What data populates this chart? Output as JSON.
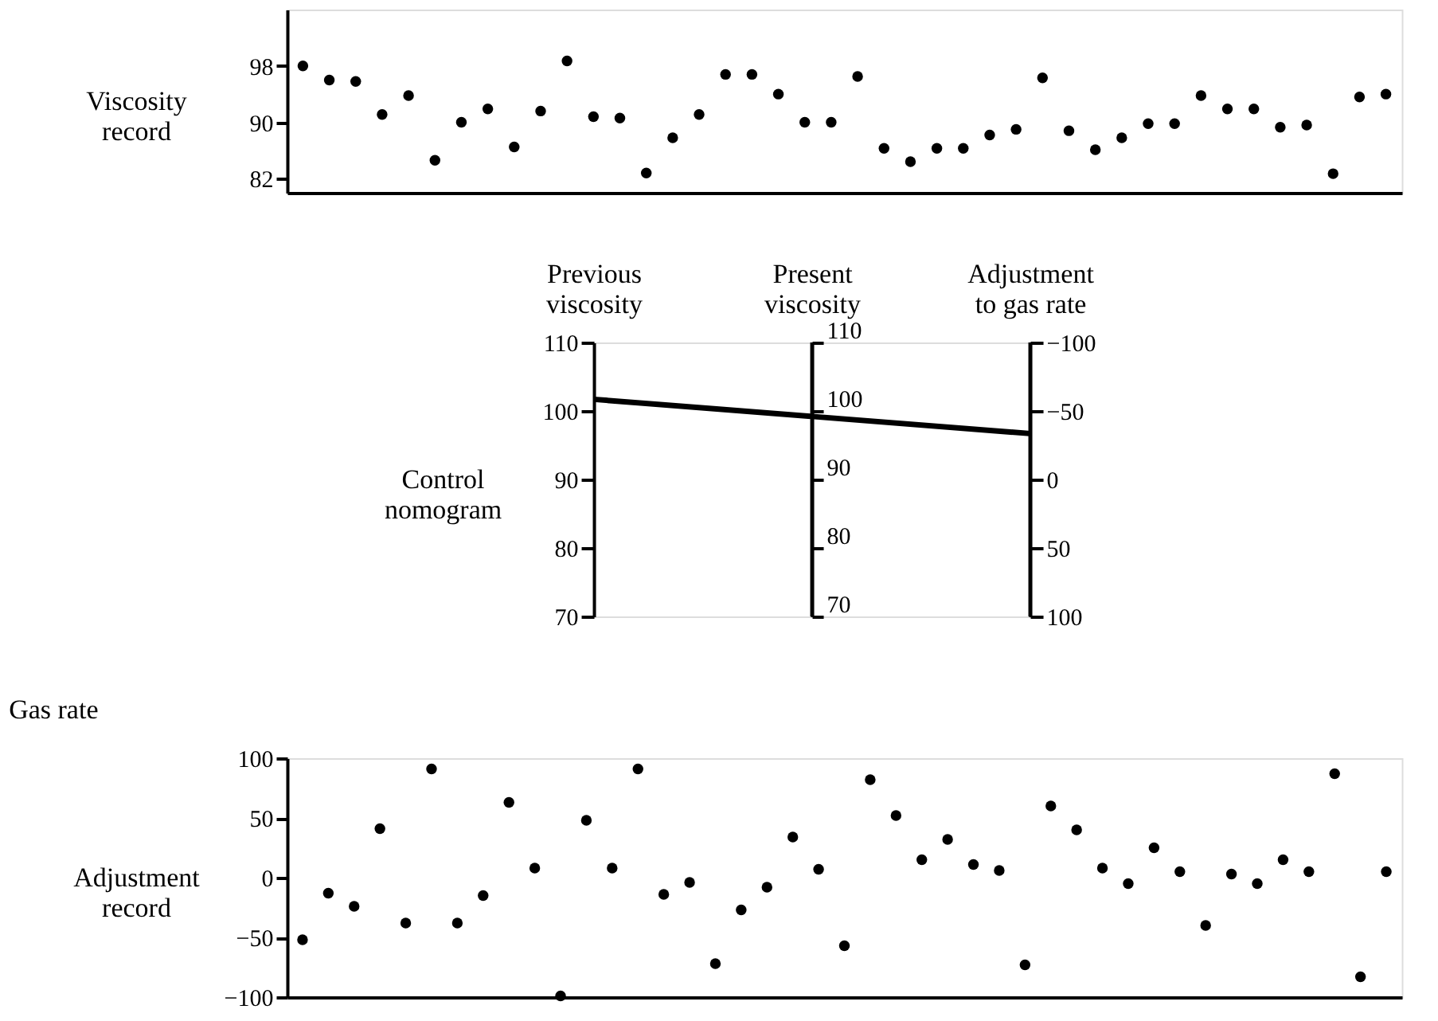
{
  "chart_data": [
    {
      "type": "scatter",
      "ylabel": "Viscosity record",
      "categories": [
        null,
        null,
        null,
        null,
        null,
        null,
        null,
        null,
        null,
        null,
        null,
        null,
        null,
        null,
        null,
        null,
        null,
        null,
        null,
        null,
        null,
        null,
        null,
        null,
        null,
        null,
        null,
        null,
        null,
        null,
        null,
        null,
        null,
        null,
        null,
        null,
        null,
        null,
        null,
        null,
        null,
        null
      ],
      "series": [
        {
          "color": "#000000",
          "values": [
            98,
            96,
            95.8,
            91.1,
            93.8,
            84.6,
            90,
            91.9,
            86.5,
            91.6,
            98.7,
            90.8,
            90.6,
            82.8,
            87.8,
            91.1,
            96.8,
            96.8,
            94,
            90,
            90,
            96.5,
            86.3,
            84.4,
            86.3,
            86.3,
            88.2,
            89,
            96.3,
            88.8,
            86.1,
            87.8,
            89.8,
            89.8,
            93.8,
            91.9,
            91.9,
            89.3,
            89.6,
            82.7,
            93.6,
            94
          ]
        }
      ],
      "ylim": [
        80,
        106
      ],
      "yticks": [
        82,
        90,
        98
      ],
      "tick_labels": "y",
      "grid": false,
      "legend": false,
      "marker": "circle"
    },
    {
      "type": "line",
      "ylabel": "Control nomogram",
      "categories": [
        "Previous viscosity",
        "Present viscosity",
        "Adjustment to gas rate"
      ],
      "series": [
        {
          "color": "#000000",
          "values": [
            101.7,
            99.2,
            96.7
          ]
        }
      ],
      "ylim": [
        70,
        110
      ],
      "yticks": [
        70,
        80,
        90,
        100,
        110
      ],
      "y3lim": [
        70,
        110
      ],
      "y3ticks": [
        70,
        80,
        90,
        100,
        110
      ],
      "y2lim": [
        100,
        -100
      ],
      "y2ticks": [
        -100,
        -50,
        0,
        50,
        100
      ],
      "grid": false,
      "legend": false,
      "marker": "none",
      "line_style": "solid"
    },
    {
      "type": "scatter",
      "title": "Gas rate",
      "ylabel": "Adjustment record",
      "categories": [
        null,
        null,
        null,
        null,
        null,
        null,
        null,
        null,
        null,
        null,
        null,
        null,
        null,
        null,
        null,
        null,
        null,
        null,
        null,
        null,
        null,
        null,
        null,
        null,
        null,
        null,
        null,
        null,
        null,
        null,
        null,
        null,
        null,
        null,
        null,
        null,
        null,
        null,
        null,
        null,
        null,
        null,
        null
      ],
      "series": [
        {
          "color": "#000000",
          "values": [
            -52,
            -13,
            -24,
            41,
            -38,
            91,
            -38,
            -15,
            63,
            8,
            -99,
            48,
            8,
            91,
            -14,
            -4,
            -72,
            -27,
            -8,
            34,
            7,
            -57,
            82,
            52,
            15,
            32,
            11,
            6,
            -73,
            60,
            40,
            8,
            -5,
            25,
            5,
            -40,
            3,
            -5,
            15,
            5,
            87,
            -83,
            5
          ]
        }
      ],
      "ylim": [
        -100,
        100
      ],
      "yticks": [
        -100,
        -50,
        0,
        50,
        100
      ],
      "tick_labels": "y",
      "grid": false,
      "legend": false,
      "marker": "circle"
    }
  ]
}
